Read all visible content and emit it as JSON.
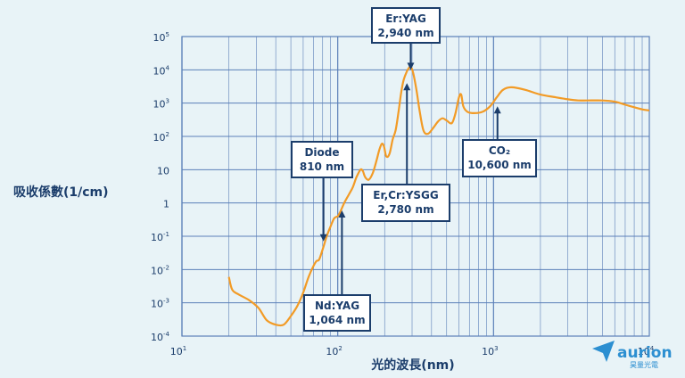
{
  "colors": {
    "background": "#e8f3f7",
    "grid": "#5b7fb8",
    "curve": "#f29b26",
    "text": "#1b3d6b",
    "logo": "#2c8fd1"
  },
  "chart_data": {
    "type": "line",
    "xlabel": "光的波長(nm)",
    "ylabel": "吸收係數(1/cm)",
    "xscale": "log",
    "yscale": "log",
    "xlim": [
      10,
      10000
    ],
    "ylim": [
      0.0001,
      100000
    ],
    "grid": true,
    "x_ticks": [
      {
        "base": "10",
        "exp": "1"
      },
      {
        "base": "10",
        "exp": "2"
      },
      {
        "base": "10",
        "exp": "3"
      },
      {
        "base": "10",
        "exp": "4"
      }
    ],
    "y_ticks": [
      {
        "base": "10",
        "exp": "-4"
      },
      {
        "base": "10",
        "exp": "-3"
      },
      {
        "base": "10",
        "exp": "-2"
      },
      {
        "base": "10",
        "exp": "-1"
      },
      {
        "base": "1",
        "exp": ""
      },
      {
        "base": "10",
        "exp": ""
      },
      {
        "base": "10",
        "exp": "2"
      },
      {
        "base": "10",
        "exp": "3"
      },
      {
        "base": "10",
        "exp": "4"
      },
      {
        "base": "10",
        "exp": "5"
      }
    ],
    "series": [
      {
        "values": [
          [
            20,
            0.006
          ],
          [
            21,
            0.0025
          ],
          [
            23,
            0.0018
          ],
          [
            27,
            0.0012
          ],
          [
            31,
            0.0007
          ],
          [
            35,
            0.0003
          ],
          [
            40,
            0.00022
          ],
          [
            45,
            0.00022
          ],
          [
            50,
            0.0004
          ],
          [
            55,
            0.0008
          ],
          [
            60,
            0.002
          ],
          [
            65,
            0.006
          ],
          [
            70,
            0.013
          ],
          [
            73,
            0.018
          ],
          [
            76,
            0.02
          ],
          [
            80,
            0.04
          ],
          [
            85,
            0.1
          ],
          [
            90,
            0.2
          ],
          [
            95,
            0.35
          ],
          [
            100,
            0.4
          ],
          [
            104,
            0.55
          ],
          [
            110,
            1.0
          ],
          [
            118,
            1.8
          ],
          [
            125,
            3
          ],
          [
            132,
            6
          ],
          [
            140,
            10
          ],
          [
            145,
            9
          ],
          [
            150,
            6
          ],
          [
            158,
            5
          ],
          [
            168,
            8
          ],
          [
            178,
            20
          ],
          [
            185,
            40
          ],
          [
            192,
            60
          ],
          [
            198,
            50
          ],
          [
            205,
            25
          ],
          [
            215,
            30
          ],
          [
            225,
            80
          ],
          [
            235,
            150
          ],
          [
            245,
            500
          ],
          [
            255,
            2000
          ],
          [
            265,
            5000
          ],
          [
            278,
            9000
          ],
          [
            285,
            11000
          ],
          [
            294,
            12500
          ],
          [
            305,
            8000
          ],
          [
            320,
            2500
          ],
          [
            335,
            600
          ],
          [
            355,
            150
          ],
          [
            380,
            120
          ],
          [
            410,
            180
          ],
          [
            440,
            280
          ],
          [
            470,
            350
          ],
          [
            500,
            300
          ],
          [
            540,
            250
          ],
          [
            570,
            500
          ],
          [
            600,
            1500
          ],
          [
            620,
            1800
          ],
          [
            640,
            800
          ],
          [
            680,
            550
          ],
          [
            750,
            500
          ],
          [
            850,
            550
          ],
          [
            950,
            800
          ],
          [
            1050,
            1500
          ],
          [
            1150,
            2500
          ],
          [
            1300,
            3000
          ],
          [
            1600,
            2500
          ],
          [
            2000,
            1800
          ],
          [
            2500,
            1500
          ],
          [
            3000,
            1300
          ],
          [
            3500,
            1200
          ],
          [
            4000,
            1200
          ],
          [
            5000,
            1200
          ],
          [
            6000,
            1100
          ],
          [
            7000,
            900
          ],
          [
            8000,
            750
          ],
          [
            9000,
            650
          ],
          [
            10000,
            600
          ]
        ]
      }
    ],
    "annotations": [
      {
        "line1": "Er:YAG",
        "line2": "2,940 nm",
        "tx": 294,
        "ty": 10000
      },
      {
        "line1": "Diode",
        "line2": "810 nm",
        "tx": 81,
        "ty": 0.07
      },
      {
        "line1": "Nd:YAG",
        "line2": "1,064 nm",
        "tx": 106.4,
        "ty": 0.6
      },
      {
        "line1": "Er,Cr:YSGG",
        "line2": "2,780 nm",
        "tx": 278,
        "ty": 4000
      },
      {
        "line1": "CO₂",
        "line2": "10,600 nm",
        "tx": 1060,
        "ty": 800
      }
    ]
  },
  "logo": {
    "name": "aurion",
    "subtitle": "昊量光電"
  }
}
